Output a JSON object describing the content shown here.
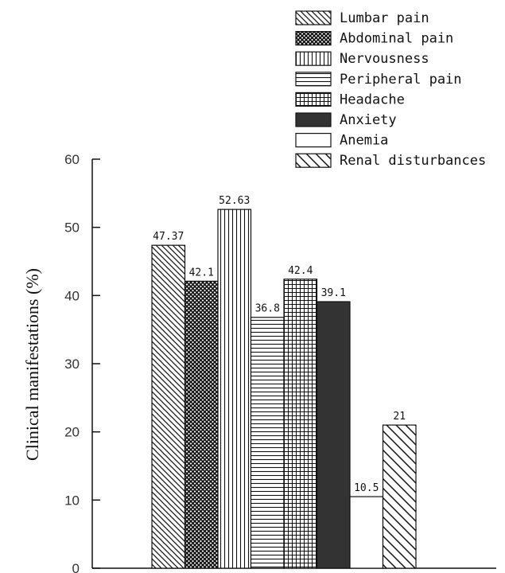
{
  "chart_data": {
    "type": "bar",
    "categories": [
      "Lumbar pain",
      "Abdominal pain",
      "Nervousness",
      "Peripheral pain",
      "Headache",
      "Anxiety",
      "Anemia",
      "Renal disturbances"
    ],
    "values": [
      47.37,
      42.1,
      52.63,
      36.8,
      42.4,
      39.1,
      10.5,
      21
    ],
    "value_labels": [
      "47.37",
      "42.1",
      "52.63",
      "36.8",
      "42.4",
      "39.1",
      "10.5",
      "21"
    ],
    "title": "",
    "xlabel": "",
    "ylabel": "Clinical manifestations (%)",
    "ylim": [
      0,
      60
    ],
    "yticks": [
      0,
      10,
      20,
      30,
      40,
      50,
      60
    ],
    "ytick_labels": [
      "0",
      "10",
      "20",
      "30",
      "40",
      "50",
      "60"
    ],
    "grid": false,
    "legend_position": "top-right",
    "patterns": [
      "diag-back",
      "crosshatch",
      "vertical",
      "horizontal",
      "grid",
      "solid",
      "empty",
      "diag-forward"
    ],
    "colors": {
      "ink": "#111111",
      "solid_fill": "#333333",
      "background": "#ffffff"
    }
  }
}
